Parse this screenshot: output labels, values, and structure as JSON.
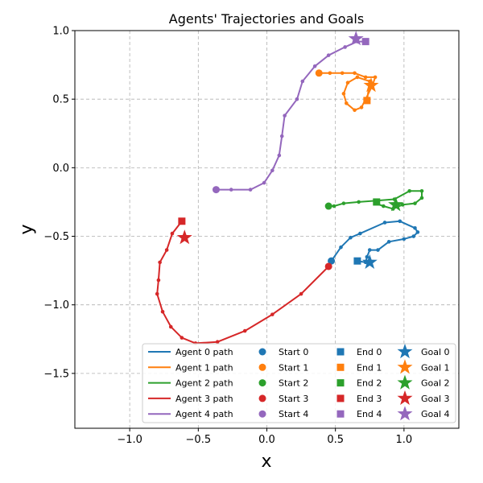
{
  "chart_data": {
    "type": "line",
    "title": "Agents' Trajectories and Goals",
    "xlabel": "x",
    "ylabel": "y",
    "xlim": [
      -1.4,
      1.4
    ],
    "ylim": [
      -1.9,
      1.0
    ],
    "xticks": [
      -1.0,
      -0.5,
      0.0,
      0.5,
      1.0
    ],
    "yticks": [
      -1.5,
      -1.0,
      -0.5,
      0.0,
      0.5,
      1.0
    ],
    "xtick_labels": [
      "−1.0",
      "−0.5",
      "0.0",
      "0.5",
      "1.0"
    ],
    "ytick_labels": [
      "−1.5",
      "−1.0",
      "−0.5",
      "0.0",
      "0.5",
      "1.0"
    ],
    "grid": true,
    "legend_position": "lower-right",
    "series": [
      {
        "name": "Agent 0 path",
        "color": "#1f77b4",
        "start_label": "Start 0",
        "end_label": "End 0",
        "goal_label": "Goal 0",
        "points": [
          [
            0.47,
            -0.68
          ],
          [
            0.54,
            -0.58
          ],
          [
            0.61,
            -0.51
          ],
          [
            0.68,
            -0.48
          ],
          [
            0.86,
            -0.4
          ],
          [
            0.97,
            -0.39
          ],
          [
            1.08,
            -0.44
          ],
          [
            1.1,
            -0.47
          ],
          [
            1.07,
            -0.5
          ],
          [
            1.0,
            -0.52
          ],
          [
            0.89,
            -0.54
          ],
          [
            0.81,
            -0.6
          ],
          [
            0.75,
            -0.6
          ],
          [
            0.73,
            -0.65
          ],
          [
            0.72,
            -0.69
          ],
          [
            0.66,
            -0.68
          ]
        ],
        "goal": [
          0.75,
          -0.69
        ]
      },
      {
        "name": "Agent 1 path",
        "color": "#ff7f0e",
        "start_label": "Start 1",
        "end_label": "End 1",
        "goal_label": "Goal 1",
        "points": [
          [
            0.38,
            0.69
          ],
          [
            0.46,
            0.69
          ],
          [
            0.55,
            0.69
          ],
          [
            0.64,
            0.69
          ],
          [
            0.72,
            0.66
          ],
          [
            0.79,
            0.66
          ],
          [
            0.77,
            0.6
          ],
          [
            0.72,
            0.5
          ],
          [
            0.69,
            0.44
          ],
          [
            0.64,
            0.42
          ],
          [
            0.58,
            0.47
          ],
          [
            0.56,
            0.54
          ],
          [
            0.59,
            0.62
          ],
          [
            0.66,
            0.66
          ],
          [
            0.75,
            0.63
          ],
          [
            0.73,
            0.49
          ]
        ],
        "goal": [
          0.76,
          0.6
        ]
      },
      {
        "name": "Agent 2 path",
        "color": "#2ca02c",
        "start_label": "Start 2",
        "end_label": "End 2",
        "goal_label": "Goal 2",
        "points": [
          [
            0.45,
            -0.28
          ],
          [
            0.49,
            -0.28
          ],
          [
            0.56,
            -0.26
          ],
          [
            0.67,
            -0.25
          ],
          [
            0.8,
            -0.24
          ],
          [
            0.93,
            -0.23
          ],
          [
            1.04,
            -0.17
          ],
          [
            1.13,
            -0.17
          ],
          [
            1.13,
            -0.22
          ],
          [
            1.08,
            -0.26
          ],
          [
            0.99,
            -0.27
          ],
          [
            0.92,
            -0.3
          ],
          [
            0.85,
            -0.28
          ],
          [
            0.79,
            -0.26
          ],
          [
            0.8,
            -0.25
          ]
        ],
        "goal": [
          0.94,
          -0.27
        ]
      },
      {
        "name": "Agent 3 path",
        "color": "#d62728",
        "start_label": "Start 3",
        "end_label": "End 3",
        "goal_label": "Goal 3",
        "points": [
          [
            0.45,
            -0.72
          ],
          [
            0.25,
            -0.92
          ],
          [
            0.04,
            -1.07
          ],
          [
            -0.16,
            -1.19
          ],
          [
            -0.36,
            -1.27
          ],
          [
            -0.52,
            -1.28
          ],
          [
            -0.62,
            -1.24
          ],
          [
            -0.7,
            -1.16
          ],
          [
            -0.76,
            -1.05
          ],
          [
            -0.8,
            -0.92
          ],
          [
            -0.79,
            -0.82
          ],
          [
            -0.78,
            -0.69
          ],
          [
            -0.73,
            -0.6
          ],
          [
            -0.69,
            -0.48
          ],
          [
            -0.62,
            -0.39
          ]
        ],
        "goal": [
          -0.6,
          -0.51
        ]
      },
      {
        "name": "Agent 4 path",
        "color": "#9467bd",
        "start_label": "Start 4",
        "end_label": "End 4",
        "goal_label": "Goal 4",
        "points": [
          [
            -0.37,
            -0.16
          ],
          [
            -0.26,
            -0.16
          ],
          [
            -0.12,
            -0.16
          ],
          [
            -0.02,
            -0.11
          ],
          [
            0.04,
            -0.02
          ],
          [
            0.09,
            0.09
          ],
          [
            0.11,
            0.23
          ],
          [
            0.13,
            0.38
          ],
          [
            0.22,
            0.5
          ],
          [
            0.26,
            0.63
          ],
          [
            0.35,
            0.74
          ],
          [
            0.45,
            0.82
          ],
          [
            0.57,
            0.88
          ],
          [
            0.66,
            0.92
          ],
          [
            0.72,
            0.92
          ]
        ],
        "goal": [
          0.65,
          0.94
        ]
      }
    ]
  }
}
